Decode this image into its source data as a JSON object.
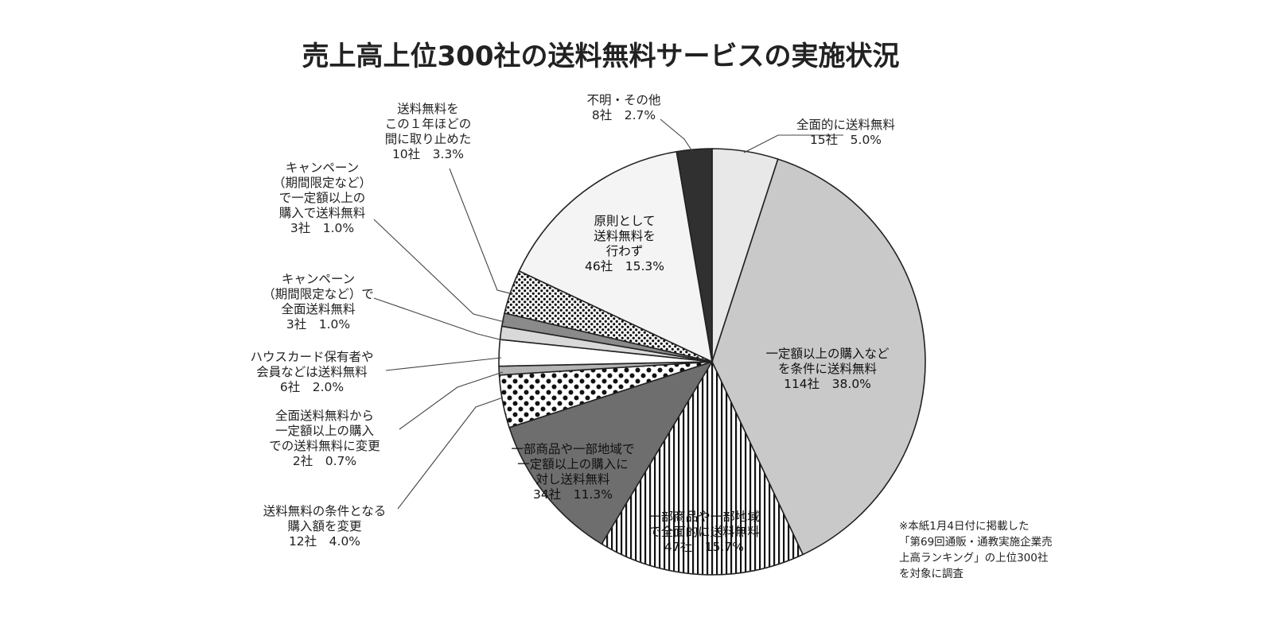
{
  "chart_data": {
    "type": "pie",
    "title": "売上高上位300社の送料無料サービスの実施状況",
    "unit": "社",
    "start_angle_deg": 0,
    "direction": "clockwise",
    "slices": [
      {
        "key": "s1",
        "label_lines": [
          "全面的に送料無料"
        ],
        "count": 15,
        "percent": 5.0,
        "count_text": "15社",
        "percent_text": "5.0%",
        "fill": "#e8e8e8",
        "pattern": "solid"
      },
      {
        "key": "s2",
        "label_lines": [
          "一定額以上の購入など",
          "を条件に送料無料"
        ],
        "count": 114,
        "percent": 38.0,
        "count_text": "114社",
        "percent_text": "38.0%",
        "fill": "#c9c9c9",
        "pattern": "solid"
      },
      {
        "key": "s3",
        "label_lines": [
          "一部商品や一部地域",
          "で全面的に送料無料"
        ],
        "count": 47,
        "percent": 15.7,
        "count_text": "47社",
        "percent_text": "15.7%",
        "fill": "#ffffff",
        "pattern": "vlines"
      },
      {
        "key": "s4",
        "label_lines": [
          "一部商品や一部地域で",
          "一定額以上の購入に",
          "対し送料無料"
        ],
        "count": 34,
        "percent": 11.3,
        "count_text": "34社",
        "percent_text": "11.3%",
        "fill": "#6e6e6e",
        "pattern": "solid"
      },
      {
        "key": "s5",
        "label_lines": [
          "送料無料の条件となる",
          "購入額を変更"
        ],
        "count": 12,
        "percent": 4.0,
        "count_text": "12社",
        "percent_text": "4.0%",
        "fill": "#ffffff",
        "pattern": "bigdots"
      },
      {
        "key": "s6",
        "label_lines": [
          "全面送料無料から",
          "一定額以上の購入",
          "での送料無料に変更"
        ],
        "count": 2,
        "percent": 0.7,
        "count_text": "2社",
        "percent_text": "0.7%",
        "fill": "#b3b3b3",
        "pattern": "solid"
      },
      {
        "key": "s7",
        "label_lines": [
          "ハウスカード保有者や",
          "会員などは送料無料"
        ],
        "count": 6,
        "percent": 2.0,
        "count_text": "6社",
        "percent_text": "2.0%",
        "fill": "#ffffff",
        "pattern": "solid"
      },
      {
        "key": "s8",
        "label_lines": [
          "キャンペーン",
          "（期間限定など）で",
          "全面送料無料"
        ],
        "count": 3,
        "percent": 1.0,
        "count_text": "3社",
        "percent_text": "1.0%",
        "fill": "#d9d9d9",
        "pattern": "solid"
      },
      {
        "key": "s9",
        "label_lines": [
          "キャンペーン",
          "（期間限定など）",
          "で一定額以上の",
          "購入で送料無料"
        ],
        "count": 3,
        "percent": 1.0,
        "count_text": "3社",
        "percent_text": "1.0%",
        "fill": "#8a8a8a",
        "pattern": "solid"
      },
      {
        "key": "s10",
        "label_lines": [
          "送料無料を",
          "この１年ほどの",
          "間に取り止めた"
        ],
        "count": 10,
        "percent": 3.3,
        "count_text": "10社",
        "percent_text": "3.3%",
        "fill": "#ffffff",
        "pattern": "checker"
      },
      {
        "key": "s11",
        "label_lines": [
          "原則として",
          "送料無料を",
          "行わず"
        ],
        "count": 46,
        "percent": 15.3,
        "count_text": "46社",
        "percent_text": "15.3%",
        "fill": "#f4f4f4",
        "pattern": "solid"
      },
      {
        "key": "s12",
        "label_lines": [
          "不明・その他"
        ],
        "count": 8,
        "percent": 2.7,
        "count_text": "8社",
        "percent_text": "2.7%",
        "fill": "#303030",
        "pattern": "solid"
      }
    ],
    "footnote_lines": [
      "※本紙1月4日付に掲載した",
      "「第69回通販・通教実施企業売",
      "上高ランキング」の上位300社",
      "を対象に調査"
    ]
  }
}
